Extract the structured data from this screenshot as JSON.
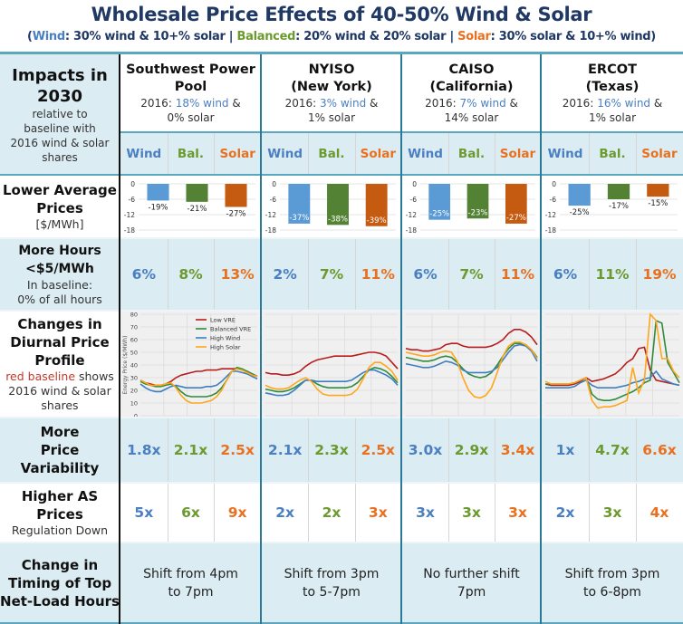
{
  "title": "Wholesale Price Effects of 40-50% Wind & Solar",
  "subtitle": {
    "open": "(",
    "wind_word": "W",
    "wind_rest": "ind",
    "wind_desc": ": 30% wind & 10+% solar  |  ",
    "bal_word": "Balanced",
    "bal_desc": ": 20% wind & 20% solar  |  ",
    "solar_word": "Solar",
    "solar_desc": ": 30% solar & 10+% wind)"
  },
  "colors": {
    "wind": "#4a7fc1",
    "balanced": "#6b9a2e",
    "solar": "#e8701f",
    "low_vre": "#b81c1c",
    "bar_wind": "#5b9bd5",
    "bar_bal": "#548235",
    "bar_solar": "#c55a11",
    "header_bg": "#dbecf3",
    "title": "#1f3864"
  },
  "corner": {
    "line1": "Impacts in",
    "line2": "2030",
    "sub1": "relative to",
    "sub2": "baseline with",
    "sub3": "2016 wind & solar",
    "sub4": "shares"
  },
  "scenario_labels": [
    "Wind",
    "Bal.",
    "Solar"
  ],
  "regions": [
    {
      "name1": "Southwest Power",
      "name2": "Pool",
      "prefix": "2016: ",
      "wind": "18% wind",
      "amp": " &",
      "solar": "0% solar"
    },
    {
      "name1": "NYISO",
      "name2": "(New York)",
      "prefix": "2016: ",
      "wind": "3% wind",
      "amp": " &",
      "solar": "1% solar"
    },
    {
      "name1": "CAISO",
      "name2": "(California)",
      "prefix": "2016: ",
      "wind": "7% wind",
      "amp": " &",
      "solar": "14% solar"
    },
    {
      "name1": "ERCOT",
      "name2": "(Texas)",
      "prefix": "2016: ",
      "wind": "16% wind",
      "amp": " &",
      "solar": "1% solar"
    }
  ],
  "rows": {
    "lower_prices": {
      "h1": "Lower Average",
      "h2": "Prices",
      "sub": "[$/MWh]"
    },
    "more_hours": {
      "h1": "More Hours",
      "h2": "<$5/MWh",
      "sub1": "In baseline:",
      "sub2": "0% of all hours",
      "values": [
        [
          "6%",
          "8%",
          "13%"
        ],
        [
          "2%",
          "7%",
          "11%"
        ],
        [
          "6%",
          "7%",
          "11%"
        ],
        [
          "6%",
          "11%",
          "19%"
        ]
      ]
    },
    "diurnal": {
      "h1": "Changes in",
      "h2": "Diurnal Price",
      "h3": "Profile",
      "sub_red": "red baseline",
      "sub_rest": " shows",
      "sub2": "2016 wind & solar",
      "sub3": "shares"
    },
    "variability": {
      "h1": "More",
      "h2": "Price Variability",
      "values": [
        [
          "1.8x",
          "2.1x",
          "2.5x"
        ],
        [
          "2.1x",
          "2.3x",
          "2.5x"
        ],
        [
          "3.0x",
          "2.9x",
          "3.4x"
        ],
        [
          "1x",
          "4.7x",
          "6.6x"
        ]
      ]
    },
    "as_prices": {
      "h1": "Higher AS",
      "h2": "Prices",
      "sub": "Regulation Down",
      "values": [
        [
          "5x",
          "6x",
          "9x"
        ],
        [
          "2x",
          "2x",
          "3x"
        ],
        [
          "3x",
          "3x",
          "3x"
        ],
        [
          "2x",
          "3x",
          "4x"
        ]
      ]
    },
    "timing": {
      "h1": "Change in",
      "h2": "Timing of Top",
      "h3": "Net-Load Hours",
      "values": [
        [
          "Shift from 4pm",
          "to 7pm"
        ],
        [
          "Shift from 3pm",
          "to 5-7pm"
        ],
        [
          "No further shift",
          "7pm"
        ],
        [
          "Shift from 3pm",
          "to 6-8pm"
        ]
      ]
    }
  },
  "chart_data": [
    {
      "type": "bar",
      "title": "Lower Average Prices [$/MWh]",
      "ylim": [
        -18,
        0
      ],
      "yticks": [
        "0",
        "-6",
        "-12",
        "-18"
      ],
      "categories": [
        "Wind",
        "Bal.",
        "Solar"
      ],
      "panels": [
        {
          "region": "Southwest Power Pool",
          "values": [
            -6.5,
            -7,
            -9
          ],
          "labels": [
            "-19%",
            "-21%",
            "-27%"
          ],
          "label_inside": false
        },
        {
          "region": "NYISO",
          "values": [
            -15.5,
            -16,
            -16.5
          ],
          "labels": [
            "-37%",
            "-38%",
            "-39%"
          ],
          "label_inside": true
        },
        {
          "region": "CAISO",
          "values": [
            -14,
            -13.5,
            -15.5
          ],
          "labels": [
            "-25%",
            "-23%",
            "-27%"
          ],
          "label_inside": true
        },
        {
          "region": "ERCOT",
          "values": [
            -8.5,
            -6,
            -5
          ],
          "labels": [
            "-25%",
            "-17%",
            "-15%"
          ],
          "label_inside": false
        }
      ]
    },
    {
      "type": "line",
      "title": "Changes in Diurnal Price Profile",
      "ylabel": "Energy Price ($/MWh)",
      "ylim": [
        0,
        80
      ],
      "yticks": [
        "0",
        "10",
        "20",
        "30",
        "40",
        "50",
        "60",
        "70",
        "80"
      ],
      "x": [
        0,
        1,
        2,
        3,
        4,
        5,
        6,
        7,
        8,
        9,
        10,
        11,
        12,
        13,
        14,
        15,
        16,
        17,
        18,
        19,
        20,
        21,
        22,
        23
      ],
      "legend": [
        "Low VRE",
        "Balanced VRE",
        "High Wind",
        "High Solar"
      ],
      "legend_position": "top-right",
      "panels": [
        {
          "region": "Southwest Power Pool",
          "series": [
            {
              "name": "Low VRE",
              "values": [
                28,
                26,
                25,
                24,
                24,
                25,
                27,
                30,
                32,
                33,
                34,
                35,
                35,
                36,
                36,
                36,
                37,
                37,
                37,
                37,
                36,
                35,
                33,
                31
              ]
            },
            {
              "name": "Balanced VRE",
              "values": [
                27,
                25,
                24,
                23,
                23,
                24,
                25,
                23,
                19,
                16,
                15,
                15,
                15,
                15,
                16,
                18,
                22,
                28,
                35,
                38,
                37,
                35,
                33,
                31
              ]
            },
            {
              "name": "High Wind",
              "values": [
                25,
                22,
                20,
                19,
                19,
                21,
                23,
                24,
                23,
                22,
                22,
                22,
                22,
                23,
                23,
                24,
                27,
                31,
                35,
                35,
                34,
                33,
                31,
                29
              ]
            },
            {
              "name": "High Solar",
              "values": [
                28,
                26,
                24,
                24,
                24,
                25,
                26,
                22,
                16,
                12,
                10,
                10,
                10,
                11,
                12,
                15,
                20,
                28,
                35,
                37,
                36,
                34,
                32,
                31
              ]
            }
          ]
        },
        {
          "region": "NYISO",
          "series": [
            {
              "name": "Low VRE",
              "values": [
                34,
                33,
                33,
                32,
                32,
                33,
                35,
                39,
                42,
                44,
                45,
                46,
                47,
                47,
                47,
                47,
                48,
                49,
                50,
                50,
                49,
                47,
                42,
                37
              ]
            },
            {
              "name": "Balanced VRE",
              "values": [
                21,
                20,
                19,
                19,
                20,
                22,
                25,
                28,
                28,
                25,
                23,
                22,
                22,
                22,
                22,
                23,
                26,
                31,
                36,
                38,
                37,
                35,
                31,
                26
              ]
            },
            {
              "name": "High Wind",
              "values": [
                18,
                17,
                16,
                16,
                17,
                20,
                24,
                28,
                28,
                27,
                27,
                27,
                27,
                27,
                27,
                28,
                31,
                34,
                36,
                36,
                34,
                32,
                29,
                24
              ]
            },
            {
              "name": "High Solar",
              "values": [
                24,
                22,
                21,
                21,
                22,
                25,
                28,
                30,
                27,
                21,
                17,
                16,
                16,
                16,
                16,
                17,
                21,
                29,
                38,
                42,
                42,
                39,
                35,
                28
              ]
            }
          ]
        },
        {
          "region": "CAISO",
          "series": [
            {
              "name": "Low VRE",
              "values": [
                53,
                52,
                52,
                51,
                51,
                52,
                53,
                56,
                57,
                57,
                55,
                54,
                54,
                54,
                54,
                55,
                57,
                60,
                65,
                68,
                68,
                66,
                62,
                56
              ]
            },
            {
              "name": "Balanced VRE",
              "values": [
                46,
                45,
                44,
                43,
                43,
                44,
                46,
                47,
                46,
                42,
                37,
                33,
                31,
                30,
                31,
                34,
                40,
                47,
                53,
                57,
                57,
                56,
                52,
                46
              ]
            },
            {
              "name": "High Wind",
              "values": [
                41,
                40,
                39,
                38,
                38,
                39,
                41,
                43,
                42,
                40,
                36,
                34,
                34,
                34,
                34,
                35,
                38,
                44,
                50,
                55,
                56,
                55,
                51,
                43
              ]
            },
            {
              "name": "High Solar",
              "values": [
                50,
                49,
                48,
                47,
                47,
                48,
                50,
                51,
                50,
                43,
                30,
                20,
                15,
                14,
                16,
                22,
                34,
                47,
                55,
                58,
                58,
                56,
                52,
                45
              ]
            }
          ]
        },
        {
          "region": "ERCOT",
          "series": [
            {
              "name": "Low VRE",
              "values": [
                25,
                24,
                24,
                24,
                24,
                25,
                27,
                30,
                27,
                28,
                29,
                31,
                33,
                37,
                42,
                45,
                53,
                54,
                36,
                28,
                27,
                26,
                25,
                24
              ]
            },
            {
              "name": "Balanced VRE",
              "values": [
                25,
                25,
                25,
                25,
                25,
                26,
                28,
                30,
                17,
                13,
                12,
                12,
                13,
                15,
                17,
                19,
                22,
                26,
                28,
                75,
                73,
                42,
                34,
                26
              ]
            },
            {
              "name": "High Wind",
              "values": [
                22,
                22,
                22,
                22,
                22,
                23,
                26,
                28,
                24,
                22,
                22,
                22,
                22,
                23,
                24,
                26,
                27,
                29,
                30,
                35,
                29,
                27,
                25,
                24
              ]
            },
            {
              "name": "High Solar",
              "values": [
                27,
                25,
                25,
                25,
                25,
                26,
                28,
                30,
                12,
                6,
                7,
                7,
                8,
                10,
                12,
                38,
                18,
                28,
                80,
                75,
                45,
                45,
                35,
                30
              ]
            }
          ]
        }
      ]
    }
  ]
}
